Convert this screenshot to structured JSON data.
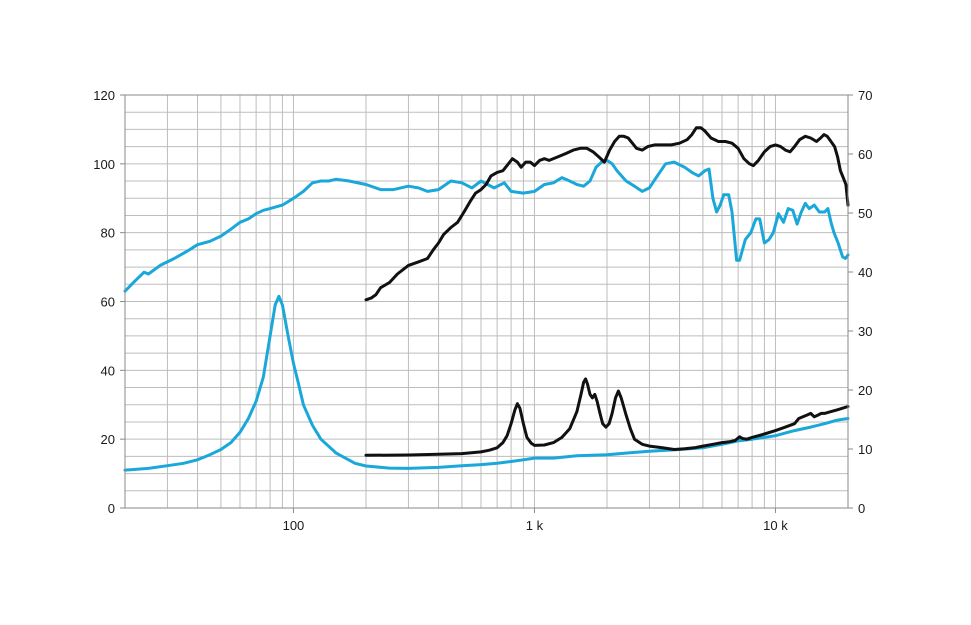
{
  "chart_data": {
    "type": "line",
    "x_scale": "log",
    "xlim": [
      20,
      20000
    ],
    "ylim_left": [
      0,
      120
    ],
    "ylim_right": [
      0,
      70
    ],
    "grid": true,
    "left_ticks": [
      "0",
      "20",
      "40",
      "60",
      "80",
      "100",
      "120"
    ],
    "right_ticks": [
      "0",
      "10",
      "20",
      "30",
      "40",
      "50",
      "60",
      "70"
    ],
    "x_tick_labels": [
      {
        "x": 100,
        "label": "100"
      },
      {
        "x": 1000,
        "label": "1 k"
      },
      {
        "x": 10000,
        "label": "10 k"
      }
    ],
    "colors": {
      "blue": "#1aa7d9",
      "black": "#111111",
      "grid": "#bdbdbd"
    },
    "series": [
      {
        "color": "#1aa7d9",
        "axis": "left",
        "points": [
          [
            20,
            63
          ],
          [
            22,
            66
          ],
          [
            24,
            68.5
          ],
          [
            25,
            68
          ],
          [
            28,
            70.5
          ],
          [
            32,
            72.5
          ],
          [
            36,
            74.5
          ],
          [
            40,
            76.5
          ],
          [
            45,
            77.5
          ],
          [
            50,
            79
          ],
          [
            55,
            81
          ],
          [
            60,
            83
          ],
          [
            65,
            84
          ],
          [
            70,
            85.5
          ],
          [
            75,
            86.5
          ],
          [
            80,
            87
          ],
          [
            90,
            88
          ],
          [
            100,
            90
          ],
          [
            110,
            92
          ],
          [
            120,
            94.5
          ],
          [
            130,
            95
          ],
          [
            140,
            95
          ],
          [
            150,
            95.5
          ],
          [
            170,
            95
          ],
          [
            200,
            94
          ],
          [
            230,
            92.5
          ],
          [
            260,
            92.5
          ],
          [
            300,
            93.5
          ],
          [
            330,
            93
          ],
          [
            360,
            92
          ],
          [
            400,
            92.5
          ],
          [
            450,
            95
          ],
          [
            500,
            94.5
          ],
          [
            550,
            93
          ],
          [
            600,
            95
          ],
          [
            640,
            94
          ],
          [
            680,
            93
          ],
          [
            750,
            94.5
          ],
          [
            800,
            92
          ],
          [
            900,
            91.5
          ],
          [
            1000,
            92
          ],
          [
            1100,
            94
          ],
          [
            1200,
            94.5
          ],
          [
            1300,
            96
          ],
          [
            1400,
            95
          ],
          [
            1500,
            94
          ],
          [
            1600,
            93.5
          ],
          [
            1700,
            95
          ],
          [
            1800,
            99
          ],
          [
            1900,
            100.5
          ],
          [
            2000,
            101
          ],
          [
            2100,
            100
          ],
          [
            2200,
            98
          ],
          [
            2400,
            95
          ],
          [
            2600,
            93.5
          ],
          [
            2800,
            92
          ],
          [
            3000,
            93
          ],
          [
            3200,
            96
          ],
          [
            3500,
            100
          ],
          [
            3800,
            100.5
          ],
          [
            4200,
            99
          ],
          [
            4500,
            97.5
          ],
          [
            4800,
            96.5
          ],
          [
            5100,
            98
          ],
          [
            5300,
            98.5
          ],
          [
            5500,
            90
          ],
          [
            5700,
            86
          ],
          [
            5900,
            88
          ],
          [
            6100,
            91
          ],
          [
            6400,
            91
          ],
          [
            6600,
            86
          ],
          [
            6900,
            72
          ],
          [
            7100,
            72
          ],
          [
            7500,
            78
          ],
          [
            7900,
            80
          ],
          [
            8300,
            84
          ],
          [
            8600,
            84
          ],
          [
            9000,
            77
          ],
          [
            9400,
            78
          ],
          [
            9800,
            80
          ],
          [
            10300,
            85.5
          ],
          [
            10800,
            83
          ],
          [
            11300,
            87
          ],
          [
            11800,
            86.5
          ],
          [
            12300,
            82.5
          ],
          [
            12800,
            86
          ],
          [
            13300,
            88.5
          ],
          [
            13800,
            87
          ],
          [
            14500,
            88
          ],
          [
            15200,
            86
          ],
          [
            16000,
            86
          ],
          [
            16500,
            87
          ],
          [
            17000,
            83
          ],
          [
            17500,
            80
          ],
          [
            18200,
            77
          ],
          [
            19000,
            73
          ],
          [
            19500,
            72.5
          ],
          [
            20000,
            73.5
          ]
        ]
      },
      {
        "color": "#1aa7d9",
        "axis": "left",
        "points": [
          [
            20,
            11
          ],
          [
            25,
            11.5
          ],
          [
            30,
            12.3
          ],
          [
            35,
            13
          ],
          [
            40,
            14
          ],
          [
            45,
            15.5
          ],
          [
            50,
            17
          ],
          [
            55,
            19
          ],
          [
            60,
            22
          ],
          [
            65,
            26
          ],
          [
            70,
            31
          ],
          [
            75,
            38
          ],
          [
            80,
            50
          ],
          [
            84,
            59
          ],
          [
            87,
            61.5
          ],
          [
            90,
            59
          ],
          [
            95,
            50
          ],
          [
            100,
            42
          ],
          [
            105,
            36
          ],
          [
            110,
            30
          ],
          [
            120,
            24
          ],
          [
            130,
            20
          ],
          [
            150,
            16
          ],
          [
            180,
            13
          ],
          [
            200,
            12.2
          ],
          [
            250,
            11.6
          ],
          [
            300,
            11.5
          ],
          [
            400,
            11.8
          ],
          [
            500,
            12.3
          ],
          [
            600,
            12.6
          ],
          [
            700,
            13
          ],
          [
            800,
            13.5
          ],
          [
            900,
            14
          ],
          [
            1000,
            14.5
          ],
          [
            1200,
            14.5
          ],
          [
            1500,
            15.2
          ],
          [
            2000,
            15.5
          ],
          [
            3000,
            16.5
          ],
          [
            4000,
            17
          ],
          [
            5000,
            17.5
          ],
          [
            6000,
            18.5
          ],
          [
            7000,
            19.5
          ],
          [
            8000,
            20
          ],
          [
            10000,
            21
          ],
          [
            12000,
            22.5
          ],
          [
            14000,
            23.5
          ],
          [
            16000,
            24.5
          ],
          [
            18000,
            25.5
          ],
          [
            20000,
            26
          ]
        ]
      },
      {
        "color": "#111111",
        "axis": "left",
        "points": [
          [
            200,
            60.5
          ],
          [
            210,
            61
          ],
          [
            220,
            62
          ],
          [
            230,
            64
          ],
          [
            250,
            65.5
          ],
          [
            270,
            68
          ],
          [
            300,
            70.5
          ],
          [
            330,
            71.5
          ],
          [
            360,
            72.5
          ],
          [
            380,
            75
          ],
          [
            400,
            77
          ],
          [
            420,
            79.5
          ],
          [
            450,
            81.5
          ],
          [
            480,
            83
          ],
          [
            510,
            86
          ],
          [
            540,
            89
          ],
          [
            570,
            91.5
          ],
          [
            600,
            92.5
          ],
          [
            630,
            94
          ],
          [
            660,
            96.5
          ],
          [
            700,
            97.5
          ],
          [
            740,
            98
          ],
          [
            780,
            100
          ],
          [
            810,
            101.5
          ],
          [
            850,
            100.5
          ],
          [
            880,
            99
          ],
          [
            920,
            100.5
          ],
          [
            960,
            100.5
          ],
          [
            1000,
            99.5
          ],
          [
            1050,
            101
          ],
          [
            1100,
            101.5
          ],
          [
            1150,
            101
          ],
          [
            1250,
            102
          ],
          [
            1350,
            103
          ],
          [
            1450,
            104
          ],
          [
            1550,
            104.5
          ],
          [
            1650,
            104.5
          ],
          [
            1750,
            103.5
          ],
          [
            1850,
            102
          ],
          [
            1950,
            100.5
          ],
          [
            2050,
            104
          ],
          [
            2150,
            106.5
          ],
          [
            2250,
            108
          ],
          [
            2350,
            108
          ],
          [
            2450,
            107.5
          ],
          [
            2550,
            106
          ],
          [
            2650,
            104.5
          ],
          [
            2800,
            104
          ],
          [
            2950,
            105
          ],
          [
            3150,
            105.5
          ],
          [
            3400,
            105.5
          ],
          [
            3700,
            105.5
          ],
          [
            4000,
            106
          ],
          [
            4300,
            107
          ],
          [
            4500,
            108.5
          ],
          [
            4700,
            110.5
          ],
          [
            4900,
            110.5
          ],
          [
            5100,
            109.5
          ],
          [
            5400,
            107.5
          ],
          [
            5800,
            106.5
          ],
          [
            6200,
            106.5
          ],
          [
            6600,
            106
          ],
          [
            7000,
            104.5
          ],
          [
            7400,
            101.5
          ],
          [
            7800,
            100
          ],
          [
            8100,
            99.5
          ],
          [
            8500,
            101
          ],
          [
            9000,
            103.5
          ],
          [
            9500,
            105
          ],
          [
            10000,
            105.5
          ],
          [
            10500,
            105
          ],
          [
            11000,
            104
          ],
          [
            11500,
            103.5
          ],
          [
            12000,
            105
          ],
          [
            12600,
            107
          ],
          [
            13300,
            108
          ],
          [
            14000,
            107.5
          ],
          [
            14800,
            106.5
          ],
          [
            15400,
            107.5
          ],
          [
            15900,
            108.5
          ],
          [
            16400,
            108
          ],
          [
            17000,
            106.5
          ],
          [
            17600,
            105
          ],
          [
            18100,
            102
          ],
          [
            18600,
            98
          ],
          [
            19100,
            96
          ],
          [
            19600,
            94
          ],
          [
            20000,
            88
          ]
        ]
      },
      {
        "color": "#111111",
        "axis": "left",
        "points": [
          [
            200,
            15.3
          ],
          [
            300,
            15.4
          ],
          [
            400,
            15.6
          ],
          [
            500,
            15.8
          ],
          [
            600,
            16.3
          ],
          [
            650,
            16.8
          ],
          [
            700,
            17.5
          ],
          [
            740,
            19
          ],
          [
            770,
            21
          ],
          [
            800,
            24.5
          ],
          [
            830,
            28.5
          ],
          [
            850,
            30.3
          ],
          [
            870,
            29
          ],
          [
            900,
            24.5
          ],
          [
            930,
            20.5
          ],
          [
            970,
            18.8
          ],
          [
            1000,
            18.2
          ],
          [
            1100,
            18.3
          ],
          [
            1200,
            19
          ],
          [
            1300,
            20.5
          ],
          [
            1400,
            23
          ],
          [
            1500,
            28
          ],
          [
            1560,
            33
          ],
          [
            1600,
            36.5
          ],
          [
            1630,
            37.5
          ],
          [
            1660,
            36
          ],
          [
            1700,
            33
          ],
          [
            1740,
            32
          ],
          [
            1780,
            33
          ],
          [
            1820,
            31
          ],
          [
            1870,
            27.5
          ],
          [
            1920,
            24.5
          ],
          [
            1980,
            23.5
          ],
          [
            2040,
            24.5
          ],
          [
            2100,
            27.5
          ],
          [
            2170,
            32
          ],
          [
            2230,
            34
          ],
          [
            2290,
            32
          ],
          [
            2400,
            27
          ],
          [
            2500,
            23
          ],
          [
            2600,
            20
          ],
          [
            2800,
            18.5
          ],
          [
            3000,
            18
          ],
          [
            3400,
            17.5
          ],
          [
            3800,
            17
          ],
          [
            4200,
            17.2
          ],
          [
            4600,
            17.5
          ],
          [
            5000,
            18
          ],
          [
            5500,
            18.5
          ],
          [
            6000,
            19
          ],
          [
            6500,
            19.3
          ],
          [
            6800,
            19.6
          ],
          [
            7100,
            20.7
          ],
          [
            7300,
            20.2
          ],
          [
            7600,
            20
          ],
          [
            8000,
            20.5
          ],
          [
            8500,
            21
          ],
          [
            9000,
            21.5
          ],
          [
            10000,
            22.5
          ],
          [
            11000,
            23.5
          ],
          [
            12000,
            24.5
          ],
          [
            12500,
            26
          ],
          [
            13000,
            26.5
          ],
          [
            13500,
            27
          ],
          [
            14000,
            27.5
          ],
          [
            14500,
            26.5
          ],
          [
            15000,
            27
          ],
          [
            15500,
            27.5
          ],
          [
            16000,
            27.5
          ],
          [
            17000,
            28
          ],
          [
            18000,
            28.5
          ],
          [
            19000,
            29
          ],
          [
            20000,
            29.5
          ]
        ]
      }
    ]
  }
}
